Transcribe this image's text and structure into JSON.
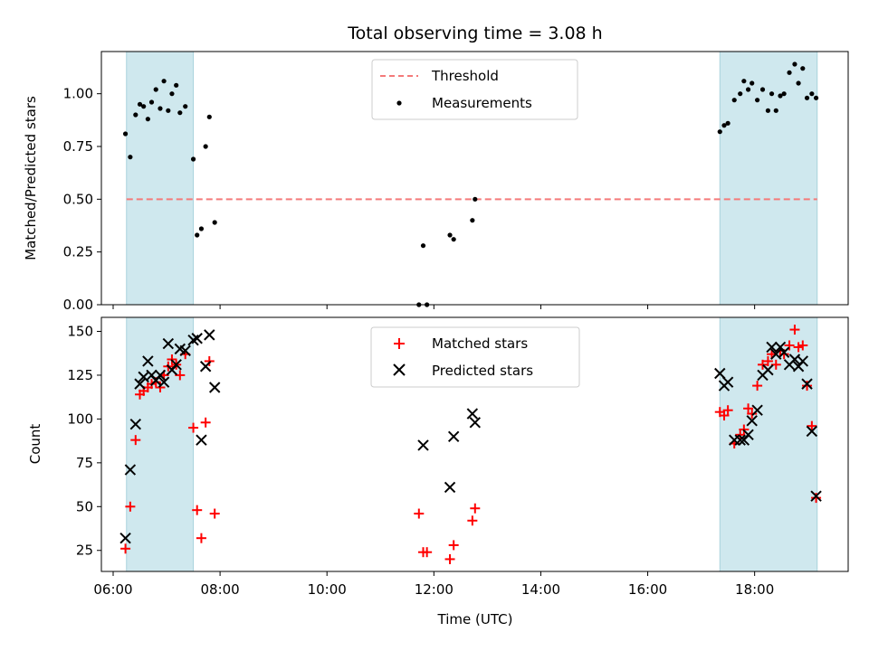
{
  "chart_data": [
    {
      "type": "scatter",
      "title": "Total observing time = 3.08 h",
      "ylabel": "Matched/Predicted stars",
      "xlabel": "",
      "xlim": [
        5.78,
        19.75
      ],
      "ylim": [
        0,
        1.2
      ],
      "yticks": [
        "0.00",
        "0.25",
        "0.50",
        "0.75",
        "1.00"
      ],
      "ytick_values": [
        0,
        0.25,
        0.5,
        0.75,
        1.0
      ],
      "shaded_intervals": [
        [
          6.25,
          7.5
        ],
        [
          17.35,
          19.17
        ]
      ],
      "shade_color": "#cfe8ee",
      "legend_position": "upper center",
      "threshold": {
        "name": "Threshold",
        "value": 0.5,
        "x_range": [
          6.25,
          19.17
        ],
        "color": "#f47a7a"
      },
      "series": [
        {
          "name": "Measurements",
          "color": "#000000",
          "marker": "dot",
          "points": [
            [
              6.23,
              0.81
            ],
            [
              6.32,
              0.7
            ],
            [
              6.42,
              0.9
            ],
            [
              6.5,
              0.95
            ],
            [
              6.57,
              0.94
            ],
            [
              6.65,
              0.88
            ],
            [
              6.72,
              0.96
            ],
            [
              6.8,
              1.02
            ],
            [
              6.88,
              0.93
            ],
            [
              6.95,
              1.06
            ],
            [
              7.03,
              0.92
            ],
            [
              7.1,
              1.0
            ],
            [
              7.18,
              1.04
            ],
            [
              7.25,
              0.91
            ],
            [
              7.35,
              0.94
            ],
            [
              7.5,
              0.69
            ],
            [
              7.57,
              0.33
            ],
            [
              7.65,
              0.36
            ],
            [
              7.73,
              0.75
            ],
            [
              7.8,
              0.89
            ],
            [
              7.9,
              0.39
            ],
            [
              11.72,
              0.0
            ],
            [
              11.8,
              0.28
            ],
            [
              11.87,
              0.0
            ],
            [
              12.3,
              0.33
            ],
            [
              12.37,
              0.31
            ],
            [
              12.72,
              0.4
            ],
            [
              12.77,
              0.5
            ],
            [
              17.35,
              0.82
            ],
            [
              17.43,
              0.85
            ],
            [
              17.5,
              0.86
            ],
            [
              17.62,
              0.97
            ],
            [
              17.73,
              1.0
            ],
            [
              17.8,
              1.06
            ],
            [
              17.88,
              1.02
            ],
            [
              17.95,
              1.05
            ],
            [
              18.05,
              0.97
            ],
            [
              18.15,
              1.02
            ],
            [
              18.25,
              0.92
            ],
            [
              18.32,
              1.0
            ],
            [
              18.4,
              0.92
            ],
            [
              18.48,
              0.99
            ],
            [
              18.55,
              1.0
            ],
            [
              18.65,
              1.1
            ],
            [
              18.75,
              1.14
            ],
            [
              18.82,
              1.05
            ],
            [
              18.9,
              1.12
            ],
            [
              18.98,
              0.98
            ],
            [
              19.07,
              1.0
            ],
            [
              19.15,
              0.98
            ]
          ]
        }
      ]
    },
    {
      "type": "scatter",
      "title": "",
      "ylabel": "Count",
      "xlabel": "Time (UTC)",
      "xlim": [
        5.78,
        19.75
      ],
      "ylim": [
        13,
        158
      ],
      "yticks": [
        "25",
        "50",
        "75",
        "100",
        "125",
        "150"
      ],
      "ytick_values": [
        25,
        50,
        75,
        100,
        125,
        150
      ],
      "xticks": [
        "06:00",
        "08:00",
        "10:00",
        "12:00",
        "14:00",
        "16:00",
        "18:00"
      ],
      "xtick_values": [
        6,
        8,
        10,
        12,
        14,
        16,
        18
      ],
      "shaded_intervals": [
        [
          6.25,
          7.5
        ],
        [
          17.35,
          19.17
        ]
      ],
      "shade_color": "#cfe8ee",
      "legend_position": "upper center",
      "series": [
        {
          "name": "Matched stars",
          "color": "#ff0000",
          "marker": "plus",
          "points": [
            [
              6.23,
              26
            ],
            [
              6.32,
              50
            ],
            [
              6.42,
              88
            ],
            [
              6.5,
              114
            ],
            [
              6.57,
              116
            ],
            [
              6.65,
              118
            ],
            [
              6.72,
              120
            ],
            [
              6.8,
              121
            ],
            [
              6.88,
              118
            ],
            [
              6.95,
              125
            ],
            [
              7.03,
              130
            ],
            [
              7.1,
              134
            ],
            [
              7.18,
              131
            ],
            [
              7.25,
              125
            ],
            [
              7.35,
              137
            ],
            [
              7.5,
              95
            ],
            [
              7.57,
              48
            ],
            [
              7.65,
              32
            ],
            [
              7.73,
              98
            ],
            [
              7.8,
              133
            ],
            [
              7.9,
              46
            ],
            [
              11.72,
              46
            ],
            [
              11.8,
              24
            ],
            [
              11.87,
              24
            ],
            [
              12.3,
              20
            ],
            [
              12.37,
              28
            ],
            [
              12.72,
              42
            ],
            [
              12.77,
              49
            ],
            [
              17.35,
              104
            ],
            [
              17.43,
              102
            ],
            [
              17.5,
              105
            ],
            [
              17.62,
              86
            ],
            [
              17.73,
              91
            ],
            [
              17.8,
              94
            ],
            [
              17.88,
              106
            ],
            [
              17.95,
              103
            ],
            [
              18.05,
              119
            ],
            [
              18.15,
              131
            ],
            [
              18.25,
              133
            ],
            [
              18.32,
              137
            ],
            [
              18.4,
              131
            ],
            [
              18.48,
              139
            ],
            [
              18.55,
              137
            ],
            [
              18.65,
              142
            ],
            [
              18.75,
              151
            ],
            [
              18.82,
              141
            ],
            [
              18.9,
              142
            ],
            [
              18.98,
              119
            ],
            [
              19.07,
              96
            ],
            [
              19.15,
              55
            ]
          ]
        },
        {
          "name": "Predicted stars",
          "color": "#000000",
          "marker": "x",
          "points": [
            [
              6.23,
              32
            ],
            [
              6.32,
              71
            ],
            [
              6.42,
              97
            ],
            [
              6.5,
              120
            ],
            [
              6.57,
              124
            ],
            [
              6.65,
              133
            ],
            [
              6.72,
              125
            ],
            [
              6.8,
              122
            ],
            [
              6.88,
              125
            ],
            [
              6.95,
              121
            ],
            [
              7.03,
              143
            ],
            [
              7.1,
              128
            ],
            [
              7.18,
              131
            ],
            [
              7.25,
              140
            ],
            [
              7.35,
              139
            ],
            [
              7.5,
              145
            ],
            [
              7.57,
              146
            ],
            [
              7.65,
              88
            ],
            [
              7.73,
              130
            ],
            [
              7.8,
              148
            ],
            [
              7.9,
              118
            ],
            [
              11.8,
              85
            ],
            [
              12.3,
              61
            ],
            [
              12.37,
              90
            ],
            [
              12.72,
              103
            ],
            [
              12.77,
              98
            ],
            [
              17.35,
              126
            ],
            [
              17.43,
              119
            ],
            [
              17.5,
              121
            ],
            [
              17.62,
              88
            ],
            [
              17.73,
              88
            ],
            [
              17.8,
              88
            ],
            [
              17.88,
              91
            ],
            [
              17.95,
              99
            ],
            [
              18.05,
              105
            ],
            [
              18.15,
              125
            ],
            [
              18.25,
              128
            ],
            [
              18.32,
              141
            ],
            [
              18.4,
              137
            ],
            [
              18.48,
              141
            ],
            [
              18.55,
              138
            ],
            [
              18.65,
              131
            ],
            [
              18.75,
              134
            ],
            [
              18.82,
              130
            ],
            [
              18.9,
              133
            ],
            [
              18.98,
              120
            ],
            [
              19.07,
              93
            ],
            [
              19.15,
              56
            ]
          ]
        }
      ]
    }
  ]
}
